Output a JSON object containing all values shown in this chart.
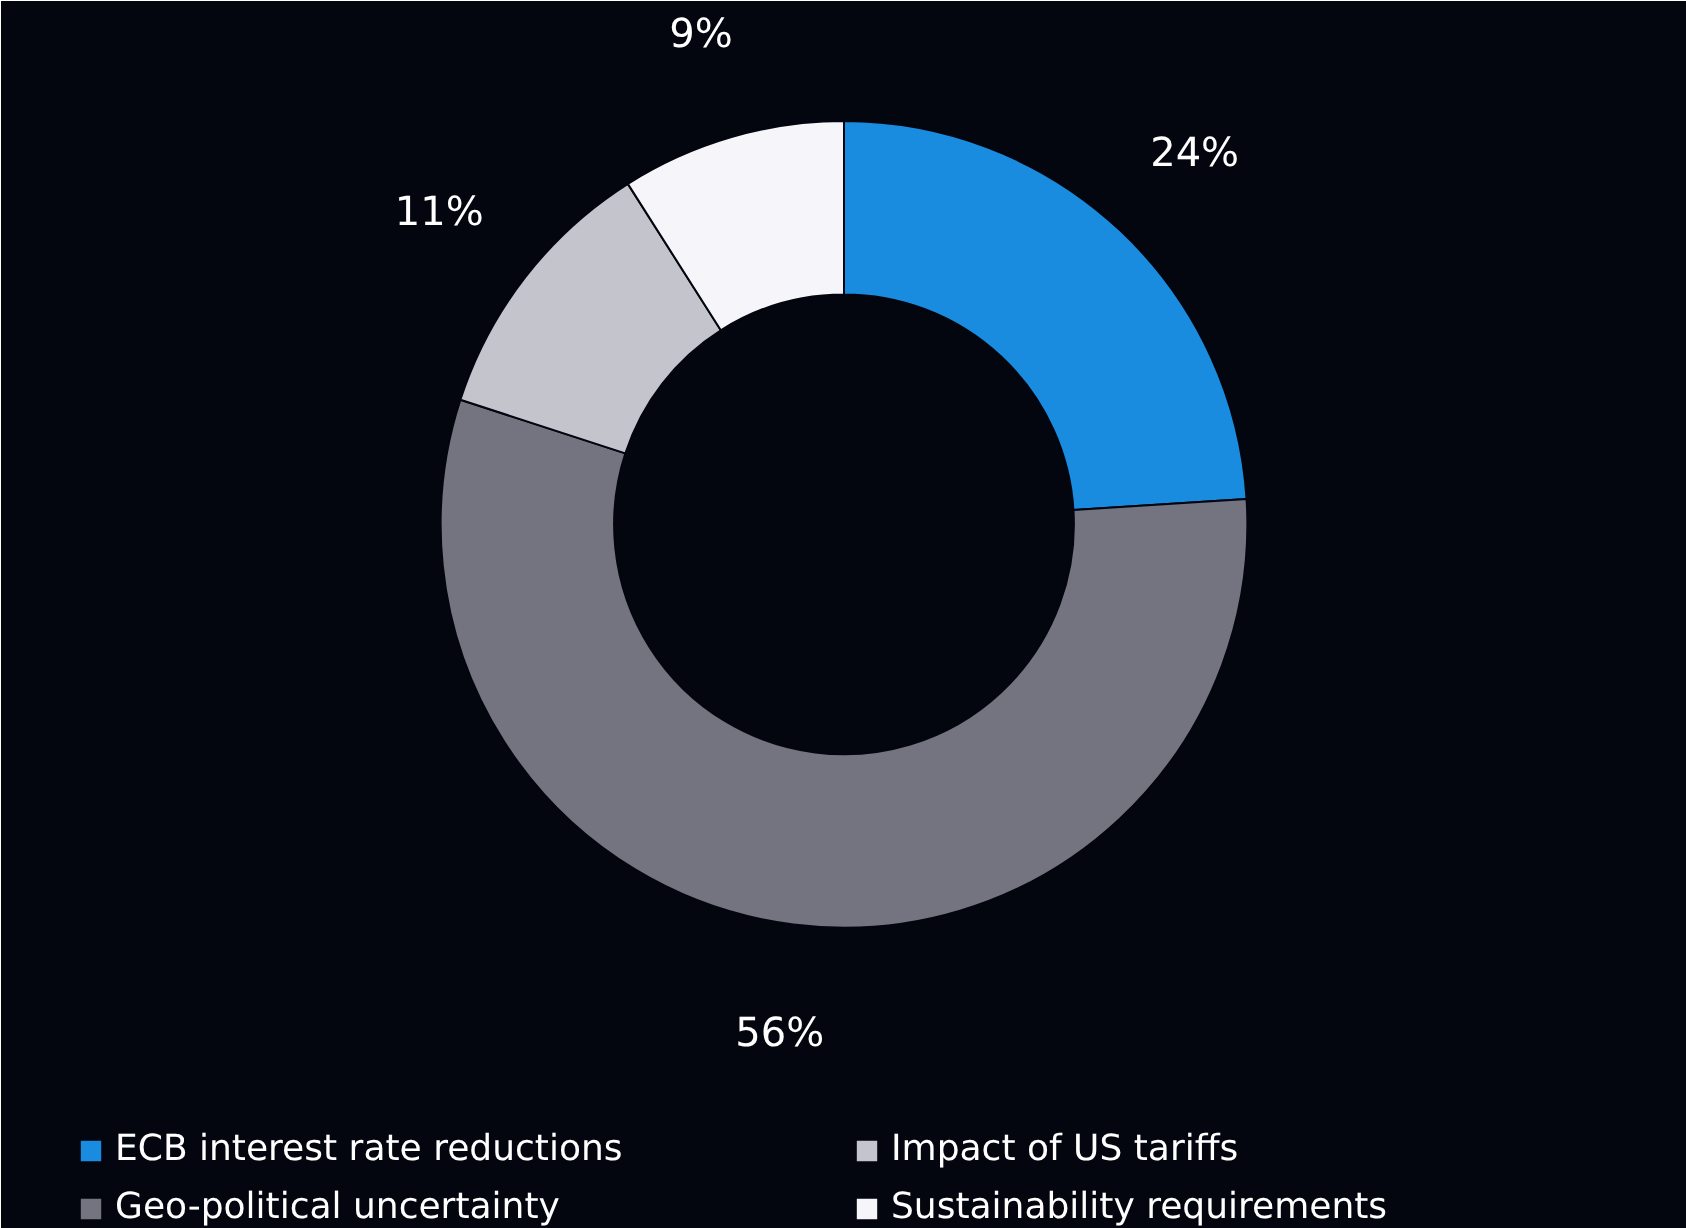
{
  "chart_data": {
    "type": "donut",
    "categories": [
      "ECB interest rate reductions",
      "Geo-political uncertainty",
      "Impact of US tariffs",
      "Sustainability requirements"
    ],
    "values": [
      24,
      56,
      11,
      9
    ],
    "colors": [
      "#1a8ce0",
      "#747480",
      "#c4c4cc",
      "#f6f6fa"
    ],
    "value_labels": [
      "24%",
      "56%",
      "11%",
      "9%"
    ],
    "legend": "bottom"
  }
}
